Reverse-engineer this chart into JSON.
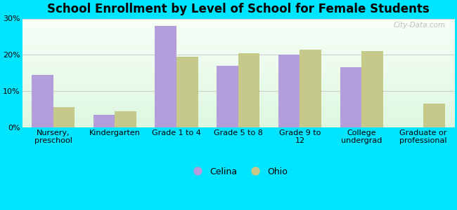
{
  "title": "School Enrollment by Level of School for Female Students",
  "categories": [
    "Nursery,\npreschool",
    "Kindergarten",
    "Grade 1 to 4",
    "Grade 5 to 8",
    "Grade 9 to\n12",
    "College\nundergrad",
    "Graduate or\nprofessional"
  ],
  "celina_values": [
    14.5,
    3.5,
    28.0,
    17.0,
    20.0,
    16.5,
    0
  ],
  "ohio_values": [
    5.5,
    4.5,
    19.5,
    20.5,
    21.5,
    21.0,
    6.5
  ],
  "celina_color": "#b39ddb",
  "ohio_color": "#c5c98a",
  "background_outer": "#00e5ff",
  "ylim": [
    0,
    30
  ],
  "yticks": [
    0,
    10,
    20,
    30
  ],
  "ytick_labels": [
    "0%",
    "10%",
    "20%",
    "30%"
  ],
  "bar_width": 0.35,
  "watermark": "City-Data.com",
  "legend_labels": [
    "Celina",
    "Ohio"
  ],
  "grid_color": "#cccccc",
  "title_fontsize": 12,
  "tick_fontsize": 8,
  "legend_fontsize": 9
}
